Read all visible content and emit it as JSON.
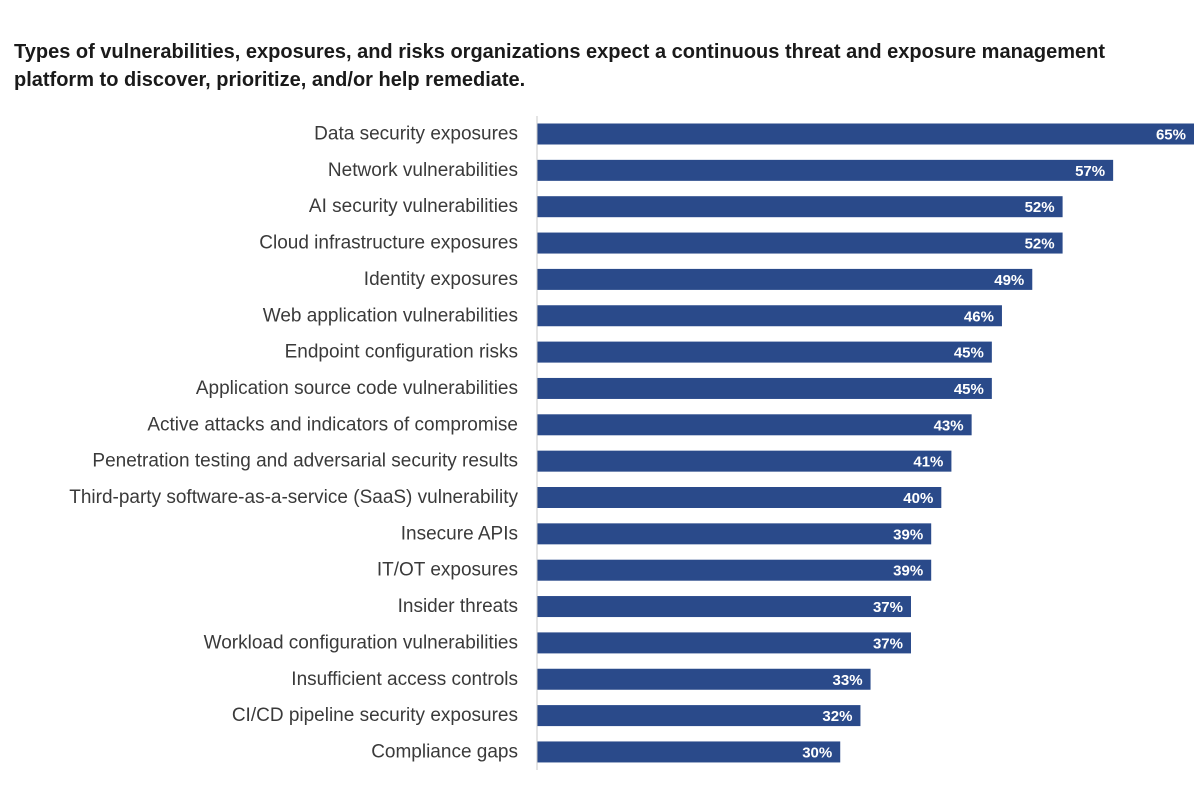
{
  "colors": {
    "bar": "#2a4a8a",
    "axis": "#c8c8c8",
    "label_text": "#3a3a3a",
    "value_text": "#ffffff"
  },
  "chart_data": {
    "type": "bar",
    "orientation": "horizontal",
    "title": "Types of vulnerabilities, exposures, and risks organizations expect a continuous threat and exposure management platform to discover, prioritize, and/or help remediate.",
    "xlabel": "",
    "ylabel": "",
    "grid": false,
    "xlim": [
      0,
      65
    ],
    "categories": [
      "Data security exposures",
      "Network vulnerabilities",
      "AI security vulnerabilities",
      "Cloud infrastructure exposures",
      "Identity exposures",
      "Web application vulnerabilities",
      "Endpoint configuration risks",
      "Application source code vulnerabilities",
      "Active attacks and indicators of compromise",
      "Penetration testing and adversarial security results",
      "Third-party software-as-a-service (SaaS) vulnerability",
      "Insecure APIs",
      "IT/OT exposures",
      "Insider threats",
      "Workload configuration vulnerabilities",
      "Insufficient access controls",
      "CI/CD pipeline security exposures",
      "Compliance gaps"
    ],
    "values": [
      65,
      57,
      52,
      52,
      49,
      46,
      45,
      45,
      43,
      41,
      40,
      39,
      39,
      37,
      37,
      33,
      32,
      30
    ],
    "value_labels": [
      "65%",
      "57%",
      "52%",
      "52%",
      "49%",
      "46%",
      "45%",
      "45%",
      "43%",
      "41%",
      "40%",
      "39%",
      "39%",
      "37%",
      "37%",
      "33%",
      "32%",
      "30%"
    ]
  }
}
